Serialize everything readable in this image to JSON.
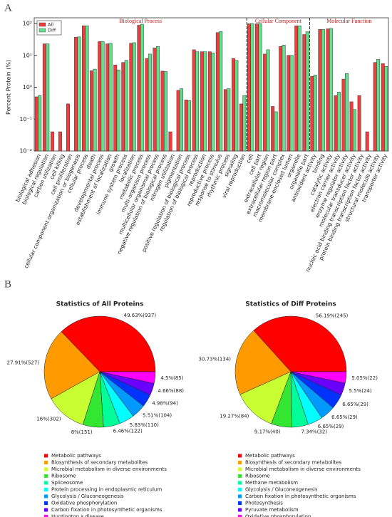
{
  "panels": [
    "A",
    "B"
  ],
  "chart_data": [
    {
      "type": "bar",
      "ylabel": "Percent Protein (%)",
      "log": true,
      "ylim": [
        0.01,
        100
      ],
      "yticks": [
        {
          "value": 0.01,
          "label": "10⁻²"
        },
        {
          "value": 0.1,
          "label": "10⁻¹"
        },
        {
          "value": 1,
          "label": "10⁰"
        },
        {
          "value": 10,
          "label": "10¹"
        },
        {
          "value": 100,
          "label": "10²"
        }
      ],
      "legend": "upper left",
      "groups": [
        {
          "label": "Biological Process",
          "span": 27
        },
        {
          "label": "Cellular Component",
          "span": 8
        },
        {
          "label": "Molecular Function",
          "span": 10
        }
      ],
      "categories": [
        "biological adhesion",
        "biological regulation",
        "carbon utilization",
        "cell killing",
        "cell proliferation",
        "cellular component organization or biogenesis",
        "cellular process",
        "death",
        "developmental process",
        "establishment of localization",
        "growth",
        "immune system process",
        "localization",
        "metabolic process",
        "multi-organism process",
        "multicellular organismal process",
        "negative regulation of biological process",
        "nitrogen utilization",
        "pigmentation",
        "positive regulation of biological process",
        "regulation of biological process",
        "reproduction",
        "reproductive process",
        "response to stimulus",
        "rhythmic process",
        "signaling",
        "viral reproduction",
        "cell",
        "cell part",
        "extracellular region",
        "extracellular region part",
        "macromolecular complex",
        "membrane-enclosed lumen",
        "organelle",
        "organelle part",
        "antioxidant activity",
        "binding",
        "catalytic activity",
        "electron carrier activity",
        "enzyme regulator activity",
        "molecular transducer activity",
        "nucleic acid binding transcription factor activity",
        "protein binding transcription factor activity",
        "structural molecule activity",
        "transporter activity"
      ],
      "series": [
        {
          "name": "All",
          "color": "#f03c3c",
          "values": [
            0.5,
            23,
            0.04,
            0.04,
            0.3,
            37,
            85,
            3.3,
            27,
            23,
            5,
            6,
            24,
            88,
            8,
            17,
            3.2,
            0.04,
            0.8,
            0.4,
            15,
            13,
            13,
            52,
            0.85,
            8,
            0.3,
            98,
            98,
            11,
            0.25,
            19,
            10,
            85,
            45,
            2.2,
            65,
            68,
            0.55,
            1.8,
            0.35,
            0.55,
            0.04,
            6,
            5.5
          ]
        },
        {
          "name": "Diff",
          "color": "#5fe08a",
          "values": [
            0.55,
            23,
            null,
            null,
            null,
            38,
            85,
            3.7,
            27,
            24,
            3.5,
            7,
            25,
            95,
            11,
            19,
            3.1,
            null,
            0.9,
            0.38,
            13,
            13,
            12,
            56,
            0.9,
            7,
            0.55,
            100,
            100,
            15,
            0.17,
            21,
            10,
            85,
            55,
            2.4,
            65,
            70,
            0.7,
            2.7,
            0.2,
            null,
            null,
            7.5,
            4.5
          ]
        }
      ]
    },
    {
      "type": "pie",
      "title": "Statistics of All Proteins",
      "categories": [
        "Metabolic pathways",
        "Biosynthesis of secondary metabolites",
        "Microbial metabolism in diverse environments",
        "Ribosome",
        "Spliceosome",
        "Protein processing in endoplasmic reticulum",
        "Glycolysis / Gluconeogenesis",
        "Oxidative phosphorylation",
        "Carbon fixation in photosynthetic organisms",
        "Huntington s disease"
      ],
      "values": [
        937,
        527,
        302,
        151,
        122,
        110,
        104,
        94,
        88,
        85
      ],
      "value_labels": [
        "49.63%(937)",
        "27.91%(527)",
        "16%(302)",
        "8%(151)",
        "6.46%(122)",
        "5.83%(110)",
        "5.51%(104)",
        "4.98%(94)",
        "4.66%(88)",
        "4.5%(85)"
      ],
      "colors": [
        "#ff0000",
        "#ff9a00",
        "#c8ff32",
        "#32e632",
        "#00ff99",
        "#00ffff",
        "#0099ff",
        "#0033ff",
        "#6a00ff",
        "#ff00ff"
      ]
    },
    {
      "type": "pie",
      "title": "Statistics of Diff Proteins",
      "categories": [
        "Metabolic pathways",
        "Biosynthesis of secondary metabolites",
        "Microbial metabolism in diverse environments",
        "Ribosome",
        "Methane metabolism",
        "Glycolysis / Gluconeogenesis",
        "Carbon fixation in photosynthetic organisms",
        "Photosynthesis",
        "Pyruvate metabolism",
        "Oxidative phosphorylation"
      ],
      "values": [
        245,
        134,
        84,
        40,
        32,
        29,
        29,
        29,
        24,
        22
      ],
      "value_labels": [
        "56.19%(245)",
        "30.73%(134)",
        "19.27%(84)",
        "9.17%(40)",
        "7.34%(32)",
        "6.65%(29)",
        "6.65%(29)",
        "6.65%(29)",
        "5.5%(24)",
        "5.05%(22)"
      ],
      "colors": [
        "#ff0000",
        "#ff9a00",
        "#c8ff32",
        "#32e632",
        "#00ff99",
        "#00ffff",
        "#0099ff",
        "#0033ff",
        "#6a00ff",
        "#ff00ff"
      ]
    }
  ]
}
